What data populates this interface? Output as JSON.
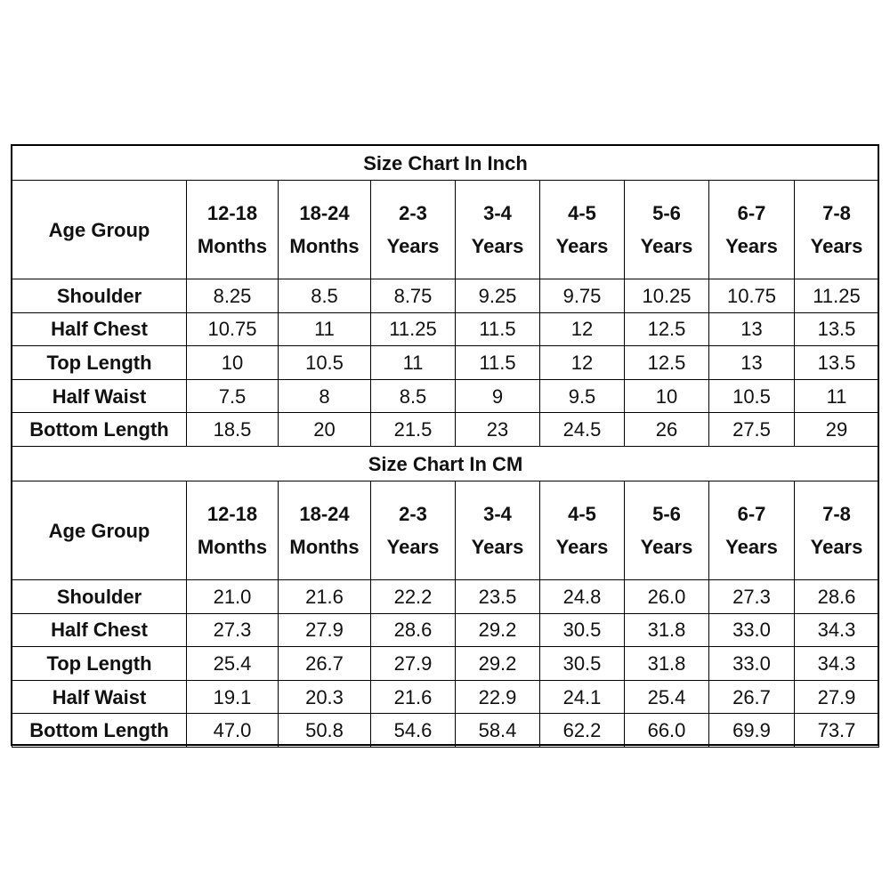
{
  "tables": [
    {
      "title": "Size Chart In Inch",
      "header": {
        "label": "Age Group",
        "columns": [
          [
            "12-18",
            "Months"
          ],
          [
            "18-24",
            "Months"
          ],
          [
            "2-3",
            "Years"
          ],
          [
            "3-4",
            "Years"
          ],
          [
            "4-5",
            "Years"
          ],
          [
            "5-6",
            "Years"
          ],
          [
            "6-7",
            "Years"
          ],
          [
            "7-8",
            "Years"
          ]
        ]
      },
      "rows": [
        {
          "label": "Shoulder",
          "values": [
            "8.25",
            "8.5",
            "8.75",
            "9.25",
            "9.75",
            "10.25",
            "10.75",
            "11.25"
          ]
        },
        {
          "label": "Half Chest",
          "values": [
            "10.75",
            "11",
            "11.25",
            "11.5",
            "12",
            "12.5",
            "13",
            "13.5"
          ]
        },
        {
          "label": "Top Length",
          "values": [
            "10",
            "10.5",
            "11",
            "11.5",
            "12",
            "12.5",
            "13",
            "13.5"
          ]
        },
        {
          "label": "Half Waist",
          "values": [
            "7.5",
            "8",
            "8.5",
            "9",
            "9.5",
            "10",
            "10.5",
            "11"
          ]
        },
        {
          "label": "Bottom Length",
          "values": [
            "18.5",
            "20",
            "21.5",
            "23",
            "24.5",
            "26",
            "27.5",
            "29"
          ]
        }
      ]
    },
    {
      "title": "Size Chart In CM",
      "header": {
        "label": "Age Group",
        "columns": [
          [
            "12-18",
            "Months"
          ],
          [
            "18-24",
            "Months"
          ],
          [
            "2-3",
            "Years"
          ],
          [
            "3-4",
            "Years"
          ],
          [
            "4-5",
            "Years"
          ],
          [
            "5-6",
            "Years"
          ],
          [
            "6-7",
            "Years"
          ],
          [
            "7-8",
            "Years"
          ]
        ]
      },
      "rows": [
        {
          "label": "Shoulder",
          "values": [
            "21.0",
            "21.6",
            "22.2",
            "23.5",
            "24.8",
            "26.0",
            "27.3",
            "28.6"
          ]
        },
        {
          "label": "Half Chest",
          "values": [
            "27.3",
            "27.9",
            "28.6",
            "29.2",
            "30.5",
            "31.8",
            "33.0",
            "34.3"
          ]
        },
        {
          "label": "Top Length",
          "values": [
            "25.4",
            "26.7",
            "27.9",
            "29.2",
            "30.5",
            "31.8",
            "33.0",
            "34.3"
          ]
        },
        {
          "label": "Half Waist",
          "values": [
            "19.1",
            "20.3",
            "21.6",
            "22.9",
            "24.1",
            "25.4",
            "26.7",
            "27.9"
          ]
        },
        {
          "label": "Bottom Length",
          "values": [
            "47.0",
            "50.8",
            "54.6",
            "58.4",
            "62.2",
            "66.0",
            "69.9",
            "73.7"
          ]
        }
      ]
    }
  ]
}
